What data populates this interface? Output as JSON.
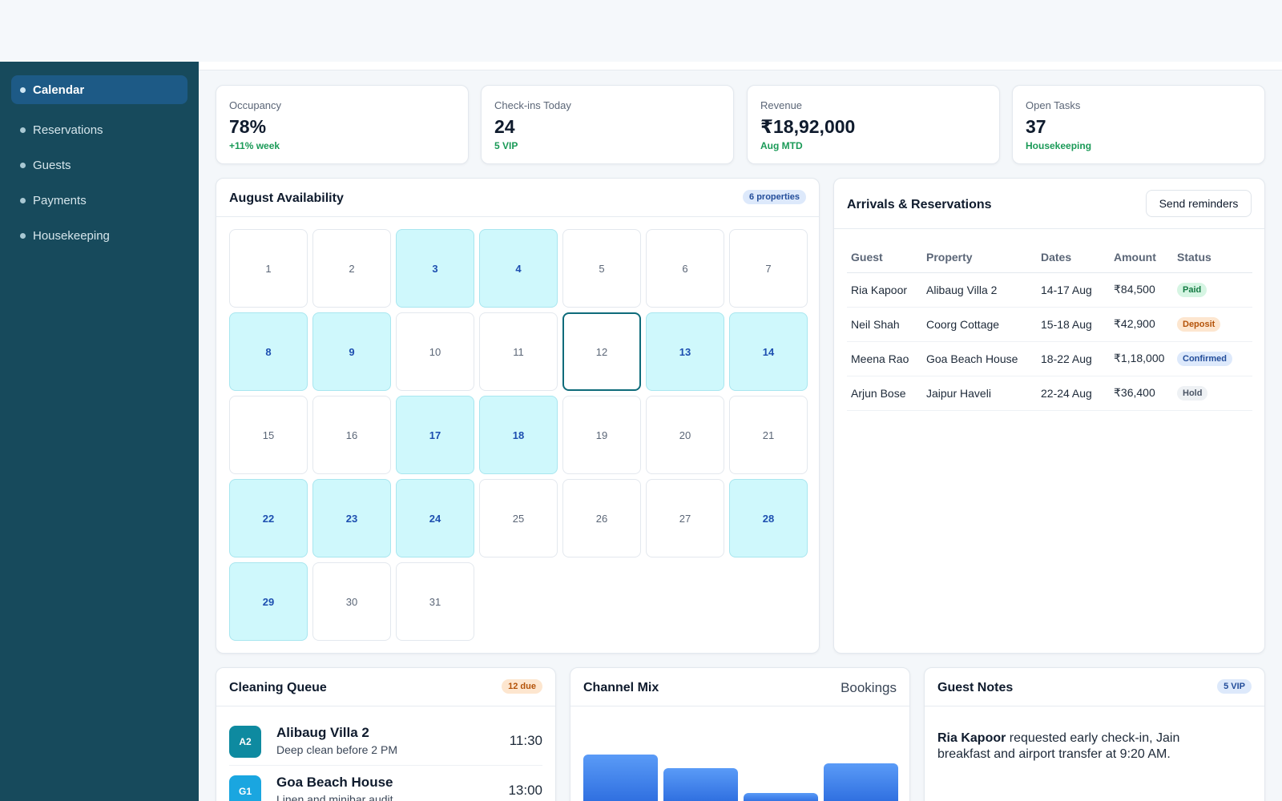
{
  "sidebar": {
    "items": [
      {
        "label": "Calendar",
        "active": true
      },
      {
        "label": "Reservations"
      },
      {
        "label": "Guests"
      },
      {
        "label": "Payments"
      },
      {
        "label": "Housekeeping"
      }
    ]
  },
  "kpis": [
    {
      "label": "Occupancy",
      "value": "78%",
      "sub": "+11% week"
    },
    {
      "label": "Check-ins Today",
      "value": "24",
      "sub": "5 VIP"
    },
    {
      "label": "Revenue",
      "value": "₹18,92,000",
      "sub": "Aug MTD"
    },
    {
      "label": "Open Tasks",
      "value": "37",
      "sub": "Housekeeping"
    }
  ],
  "availability": {
    "title": "August Availability",
    "badge": "6 properties",
    "days": [
      "1",
      "2",
      "3",
      "4",
      "5",
      "6",
      "7",
      "8",
      "9",
      "10",
      "11",
      "12",
      "13",
      "14",
      "15",
      "16",
      "17",
      "18",
      "19",
      "20",
      "21",
      "22",
      "23",
      "24",
      "25",
      "26",
      "27",
      "28",
      "29",
      "30",
      "31"
    ],
    "booked_days": [
      3,
      4,
      8,
      9,
      13,
      14,
      17,
      18,
      22,
      23,
      24,
      28,
      29
    ],
    "selected_day": 12
  },
  "arrivals": {
    "title": "Arrivals & Reservations",
    "button": "Send reminders",
    "columns": [
      "Guest",
      "Property",
      "Dates",
      "Amount",
      "Status"
    ],
    "rows": [
      {
        "guest": "Ria Kapoor",
        "property": "Alibaug Villa 2",
        "dates": "14-17 Aug",
        "amount": "₹84,500",
        "status": "Paid"
      },
      {
        "guest": "Neil Shah",
        "property": "Coorg Cottage",
        "dates": "15-18 Aug",
        "amount": "₹42,900",
        "status": "Deposit"
      },
      {
        "guest": "Meena Rao",
        "property": "Goa Beach House",
        "dates": "18-22 Aug",
        "amount": "₹1,18,000",
        "status": "Confirmed"
      },
      {
        "guest": "Arjun Bose",
        "property": "Jaipur Haveli",
        "dates": "22-24 Aug",
        "amount": "₹36,400",
        "status": "Hold"
      }
    ]
  },
  "cleaning": {
    "title": "Cleaning Queue",
    "badge": "12 due",
    "items": [
      {
        "code": "A2",
        "name": "Alibaug Villa 2",
        "desc": "Deep clean before 2 PM",
        "time": "11:30",
        "color": "#0e8aa0"
      },
      {
        "code": "G1",
        "name": "Goa Beach House",
        "desc": "Linen and minibar audit",
        "time": "13:00",
        "color": "#1aa6e0"
      }
    ]
  },
  "channel_mix": {
    "title": "Channel Mix",
    "label": "Bookings",
    "bar_levels": [
      0.95,
      0.68,
      0.18,
      0.78
    ]
  },
  "guest_notes": {
    "title": "Guest Notes",
    "badge": "5 VIP",
    "name": "Ria Kapoor",
    "text": " requested early check-in, Jain breakfast and airport transfer at 9:20 AM."
  }
}
